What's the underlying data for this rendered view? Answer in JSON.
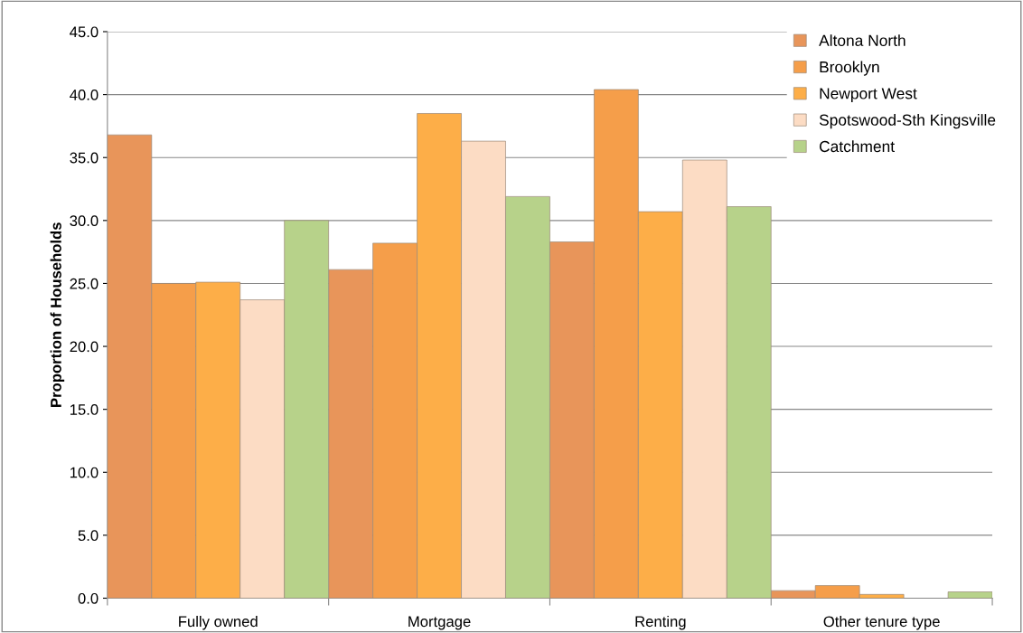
{
  "chart_data": {
    "type": "bar",
    "ylabel": "Proportion of Households",
    "categories": [
      "Fully owned",
      "Mortgage",
      "Renting",
      "Other tenure type"
    ],
    "series": [
      {
        "name": "Altona North",
        "color": "#e8955a",
        "values": [
          36.8,
          26.1,
          28.3,
          0.6
        ]
      },
      {
        "name": "Brooklyn",
        "color": "#f59e4a",
        "values": [
          25.0,
          28.2,
          40.4,
          1.0
        ]
      },
      {
        "name": "Newport West",
        "color": "#fdae48",
        "values": [
          25.1,
          38.5,
          30.7,
          0.3
        ]
      },
      {
        "name": "Spotswood-Sth Kingsville",
        "color": "#fcdcc4",
        "values": [
          23.7,
          36.3,
          34.8,
          null
        ]
      },
      {
        "name": "Catchment",
        "color": "#b7d28a",
        "values": [
          30.0,
          31.9,
          31.1,
          0.5
        ]
      }
    ],
    "ylim": [
      0,
      45
    ],
    "yticks": [
      {
        "value": 0,
        "label": "0.0"
      },
      {
        "value": 5,
        "label": "5.0"
      },
      {
        "value": 10,
        "label": "10.0"
      },
      {
        "value": 15,
        "label": "15.0"
      },
      {
        "value": 20,
        "label": "20.0"
      },
      {
        "value": 25,
        "label": "25.0"
      },
      {
        "value": 30,
        "label": "30.0"
      },
      {
        "value": 35,
        "label": "35.0"
      },
      {
        "value": 40,
        "label": "40.0"
      },
      {
        "value": 45,
        "label": "45.0"
      }
    ],
    "grid": "y",
    "legend": "top right"
  }
}
